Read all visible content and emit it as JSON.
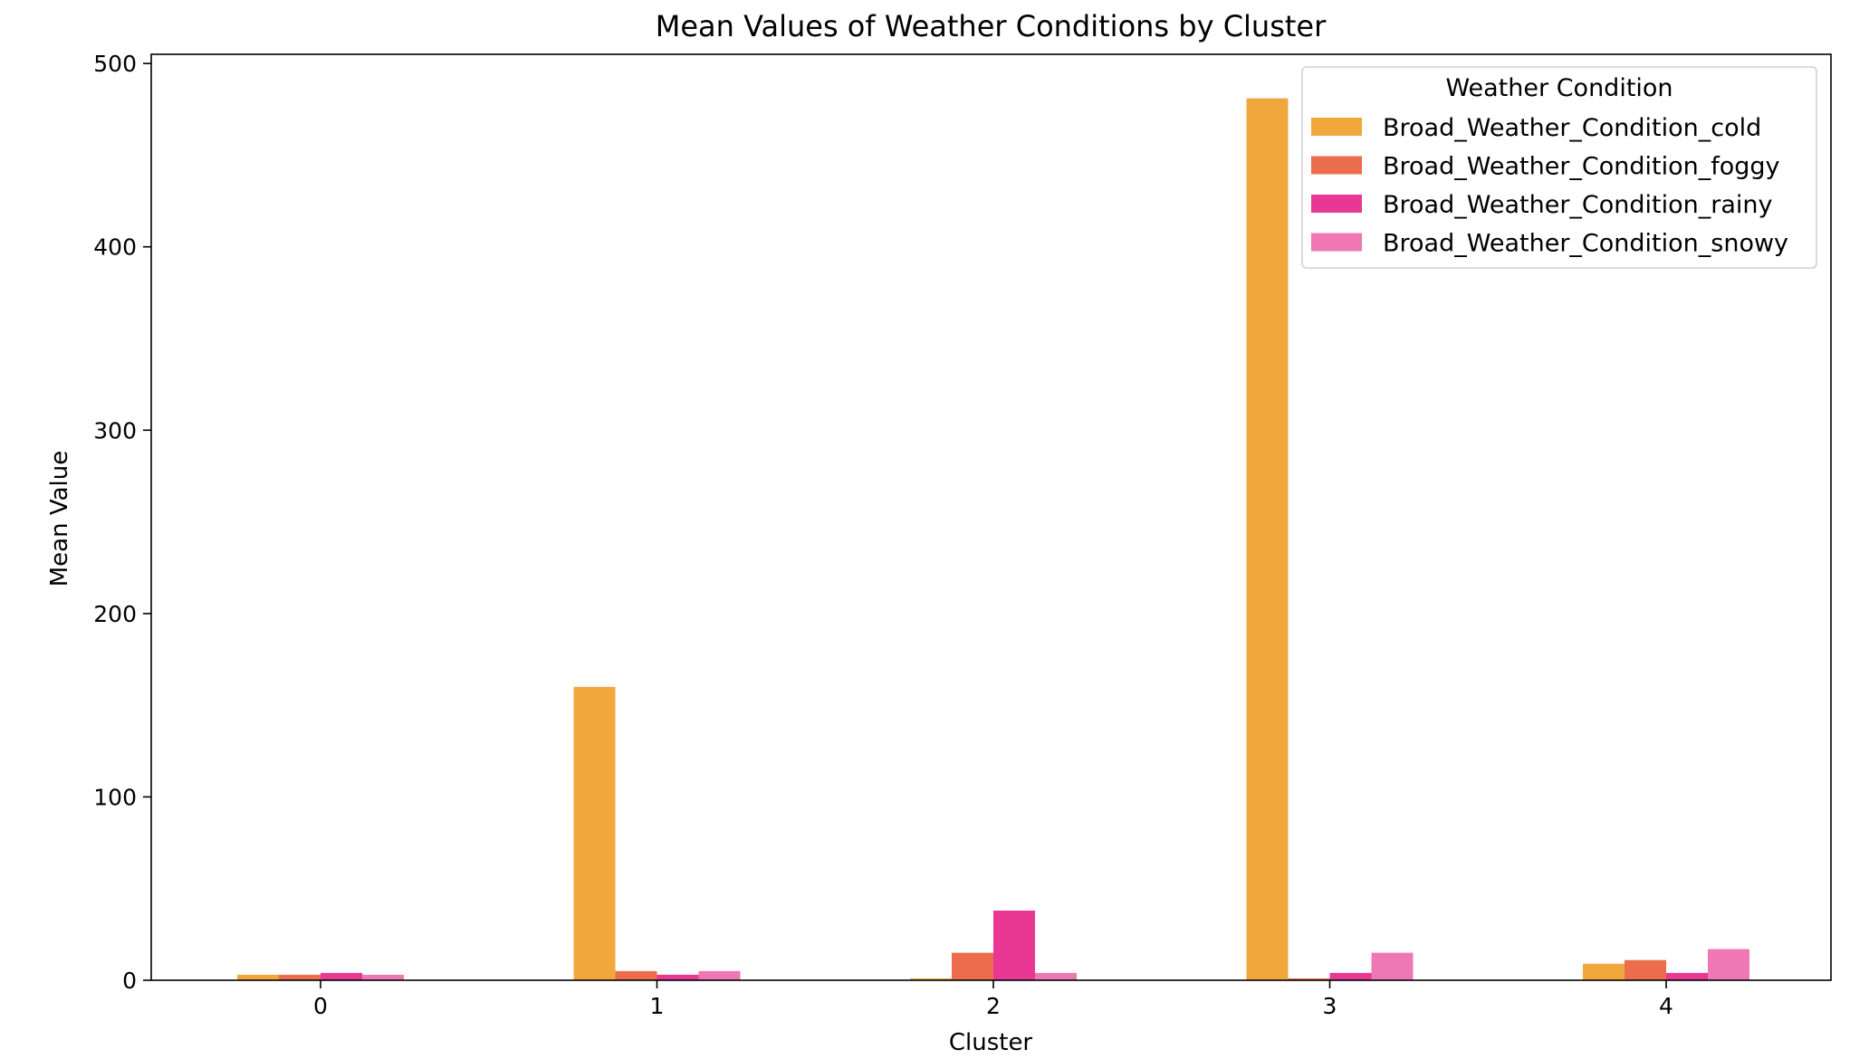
{
  "chart_data": {
    "type": "bar",
    "title": "Mean Values of Weather Conditions by Cluster",
    "xlabel": "Cluster",
    "ylabel": "Mean Value",
    "categories": [
      "0",
      "1",
      "2",
      "3",
      "4"
    ],
    "yticks": [
      0,
      100,
      200,
      300,
      400,
      500
    ],
    "ylim": [
      0,
      505
    ],
    "grid": false,
    "legend": {
      "title": "Weather Condition",
      "placement": "top-right"
    },
    "series": [
      {
        "name": "Broad_Weather_Condition_cold",
        "color": "#F0A83D",
        "values": [
          3,
          160,
          1,
          481,
          9
        ]
      },
      {
        "name": "Broad_Weather_Condition_foggy",
        "color": "#EC6D4D",
        "values": [
          3,
          5,
          15,
          1,
          11
        ]
      },
      {
        "name": "Broad_Weather_Condition_rainy",
        "color": "#E83893",
        "values": [
          4,
          3,
          38,
          4,
          4
        ]
      },
      {
        "name": "Broad_Weather_Condition_snowy",
        "color": "#EF77B4",
        "values": [
          3,
          5,
          4,
          15,
          17
        ]
      }
    ]
  }
}
